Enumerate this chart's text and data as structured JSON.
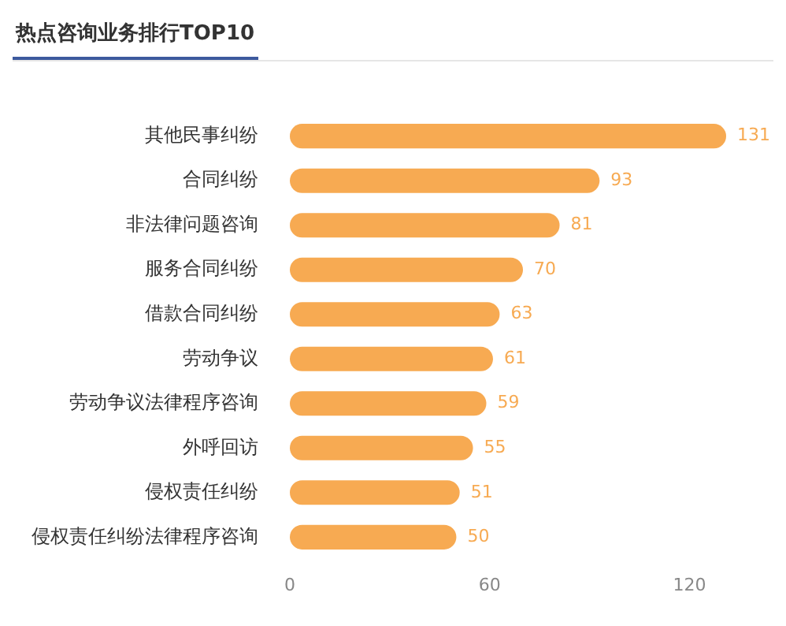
{
  "chart_data": {
    "type": "bar",
    "orientation": "horizontal",
    "title": "热点咨询业务排行TOP10",
    "categories": [
      "其他民事纠纷",
      "合同纠纷",
      "非法律问题咨询",
      "服务合同纠纷",
      "借款合同纠纷",
      "劳动争议",
      "劳动争议法律程序咨询",
      "外呼回访",
      "侵权责任纠纷",
      "侵权责任纠纷法律程序咨询"
    ],
    "values": [
      131,
      93,
      81,
      70,
      63,
      61,
      59,
      55,
      51,
      50
    ],
    "color": "#f7aa52",
    "xlim": [
      0,
      131
    ],
    "xticks": [
      0,
      60,
      120
    ],
    "grid": false,
    "legend": false,
    "data_labels": true
  }
}
